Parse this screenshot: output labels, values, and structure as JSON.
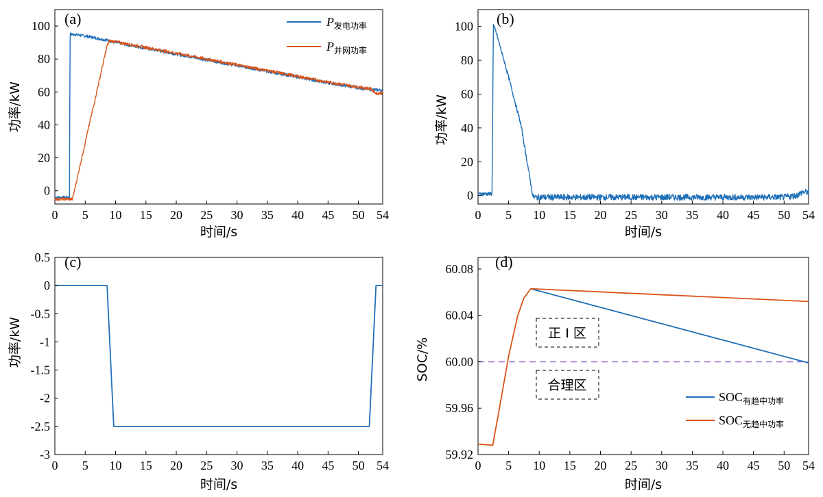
{
  "colors": {
    "blue": "#1f6fb8",
    "orange": "#d9541a",
    "purple": "#a070d0"
  },
  "chart_data": [
    {
      "panel": "(a)",
      "type": "line",
      "xlabel": "时间/s",
      "ylabel": "功率/kW",
      "xlim": [
        0,
        54
      ],
      "ylim": [
        -8,
        110
      ],
      "xticks": [
        0,
        5,
        10,
        15,
        20,
        25,
        30,
        35,
        40,
        45,
        50,
        54
      ],
      "yticks": [
        0,
        20,
        40,
        60,
        80,
        100
      ],
      "ytick_labels": [
        "0",
        "20",
        "40",
        "60",
        "80",
        "100"
      ],
      "legend_position": "top-right",
      "series": [
        {
          "name": "P",
          "name_sub": "发电功率",
          "color": "#1f6fb8",
          "points": [
            [
              0,
              -4
            ],
            [
              2.4,
              -4
            ],
            [
              2.5,
              95
            ],
            [
              3,
              95
            ],
            [
              5,
              94
            ],
            [
              8.5,
              91.5
            ],
            [
              10,
              90
            ],
            [
              15,
              86.5
            ],
            [
              20,
              83
            ],
            [
              25,
              79.5
            ],
            [
              30,
              76
            ],
            [
              35,
              72.5
            ],
            [
              40,
              69
            ],
            [
              45,
              65.5
            ],
            [
              50,
              62.5
            ],
            [
              52,
              61.5
            ],
            [
              54,
              61
            ]
          ]
        },
        {
          "name": "P",
          "name_sub": "并网功率",
          "color": "#d9541a",
          "points": [
            [
              0,
              -5
            ],
            [
              2.5,
              -5
            ],
            [
              2.9,
              -5
            ],
            [
              8.6,
              88
            ],
            [
              9,
              91
            ],
            [
              10,
              90.5
            ],
            [
              15,
              87
            ],
            [
              20,
              83.5
            ],
            [
              25,
              80
            ],
            [
              30,
              76.5
            ],
            [
              35,
              73
            ],
            [
              40,
              69.5
            ],
            [
              45,
              66
            ],
            [
              50,
              63
            ],
            [
              52,
              62
            ],
            [
              53,
              59
            ],
            [
              54,
              59.5
            ]
          ]
        }
      ]
    },
    {
      "panel": "(b)",
      "type": "line",
      "xlabel": "时间/s",
      "ylabel": "功率/kW",
      "xlim": [
        0,
        54
      ],
      "ylim": [
        -5,
        110
      ],
      "xticks": [
        0,
        5,
        10,
        15,
        20,
        25,
        30,
        35,
        40,
        45,
        50,
        54
      ],
      "yticks": [
        0,
        20,
        40,
        60,
        80,
        100
      ],
      "ytick_labels": [
        "0",
        "20",
        "40",
        "60",
        "80",
        "100"
      ],
      "series": [
        {
          "name": "",
          "color": "#1f6fb8",
          "points": [
            [
              0,
              1
            ],
            [
              2.3,
              1
            ],
            [
              2.5,
              101
            ],
            [
              3,
              96
            ],
            [
              5,
              70
            ],
            [
              7,
              42
            ],
            [
              8.9,
              1
            ],
            [
              9,
              -1
            ],
            [
              10,
              -1
            ],
            [
              20,
              -1
            ],
            [
              30,
              -1
            ],
            [
              40,
              -1
            ],
            [
              50,
              -1
            ],
            [
              52,
              0
            ],
            [
              53,
              2
            ],
            [
              54,
              2
            ]
          ]
        }
      ]
    },
    {
      "panel": "(c)",
      "type": "line",
      "xlabel": "时间/s",
      "ylabel": "功率/kW",
      "xlim": [
        0,
        54
      ],
      "ylim": [
        -3,
        0.5
      ],
      "xticks": [
        0,
        5,
        10,
        15,
        20,
        25,
        30,
        35,
        40,
        45,
        50,
        54
      ],
      "yticks": [
        0.5,
        0,
        -0.5,
        -1,
        -1.5,
        -2,
        -2.5,
        -3
      ],
      "ytick_labels": [
        "0.5",
        "0",
        "-0.5",
        "-1",
        "-1.5",
        "-2",
        "-2.5",
        "-3"
      ],
      "series": [
        {
          "name": "",
          "color": "#1f6fb8",
          "points": [
            [
              0,
              0
            ],
            [
              8.6,
              0
            ],
            [
              9.7,
              -2.5
            ],
            [
              51.8,
              -2.5
            ],
            [
              52.9,
              0
            ],
            [
              54,
              0
            ]
          ]
        }
      ]
    },
    {
      "panel": "(d)",
      "type": "line",
      "xlabel": "时间/s",
      "ylabel": "SOC/%",
      "xlim": [
        0,
        54
      ],
      "ylim": [
        59.92,
        60.09
      ],
      "xticks": [
        0,
        5,
        10,
        15,
        20,
        25,
        30,
        35,
        40,
        45,
        50,
        54
      ],
      "yticks": [
        59.92,
        59.96,
        60.0,
        60.04,
        60.08
      ],
      "ytick_labels": [
        "59.92",
        "59.96",
        "60.00",
        "60.04",
        "60.08"
      ],
      "legend_position": "bottom-right",
      "reference_line": 60.0,
      "regions": [
        "正 I 区",
        "合理区"
      ],
      "series": [
        {
          "name": "SOC",
          "name_sub": "有趋中功率",
          "color": "#1f6fb8",
          "points": [
            [
              8.6,
              60.063
            ],
            [
              54,
              59.999
            ]
          ]
        },
        {
          "name": "SOC",
          "name_sub": "无趋中功率",
          "color": "#d9541a",
          "points": [
            [
              0,
              59.929
            ],
            [
              2.4,
              59.928
            ],
            [
              3.5,
              59.96
            ],
            [
              5,
              60.005
            ],
            [
              6.5,
              60.04
            ],
            [
              7.5,
              60.055
            ],
            [
              8.6,
              60.063
            ],
            [
              54,
              60.052
            ]
          ]
        }
      ]
    }
  ]
}
